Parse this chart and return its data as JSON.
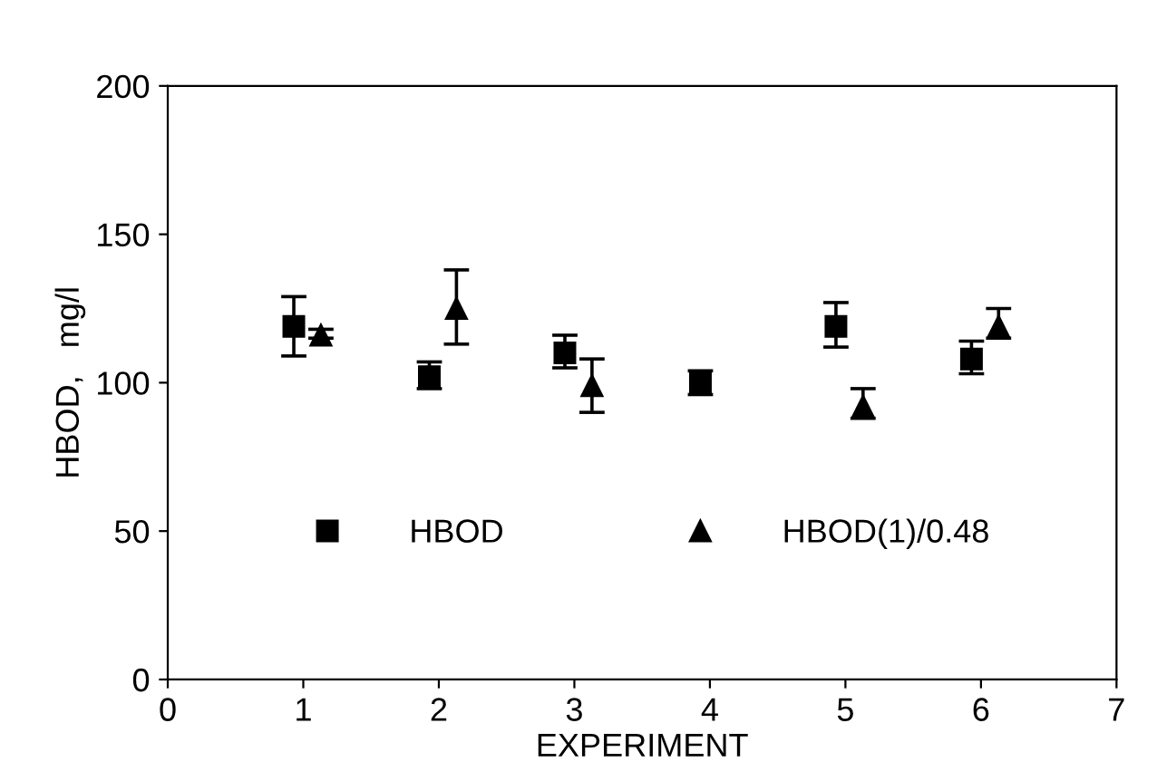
{
  "chart_data": {
    "type": "scatter",
    "xlabel": "EXPERIMENT",
    "ylabel": "HBOD,   mg/l",
    "xlim": [
      0,
      7
    ],
    "xticks": [
      0,
      1,
      2,
      3,
      4,
      5,
      6,
      7
    ],
    "ylim": [
      0,
      200
    ],
    "yticks": [
      0,
      50,
      100,
      150,
      200
    ],
    "grid": false,
    "legend": "bottom",
    "series": [
      {
        "name": "HBOD",
        "color": "#000000",
        "marker": "square",
        "x": [
          0.93,
          1.93,
          2.93,
          3.93,
          4.93,
          5.93
        ],
        "values": [
          119,
          102,
          110,
          100,
          119,
          108
        ],
        "errors": [
          [
            109,
            129
          ],
          [
            98,
            107
          ],
          [
            105,
            116
          ],
          [
            96,
            104
          ],
          [
            112,
            127
          ],
          [
            103,
            114
          ]
        ]
      },
      {
        "name": "HBOD(1)/0.48",
        "color": "#000000",
        "marker": "triangle",
        "x": [
          1.13,
          2.13,
          3.13,
          5.13,
          6.13
        ],
        "values": [
          116,
          125,
          99,
          92,
          119
        ],
        "errors": [
          [
            115,
            118
          ],
          [
            113,
            138
          ],
          [
            90,
            108
          ],
          [
            88,
            98
          ],
          [
            115,
            125
          ]
        ]
      }
    ]
  }
}
